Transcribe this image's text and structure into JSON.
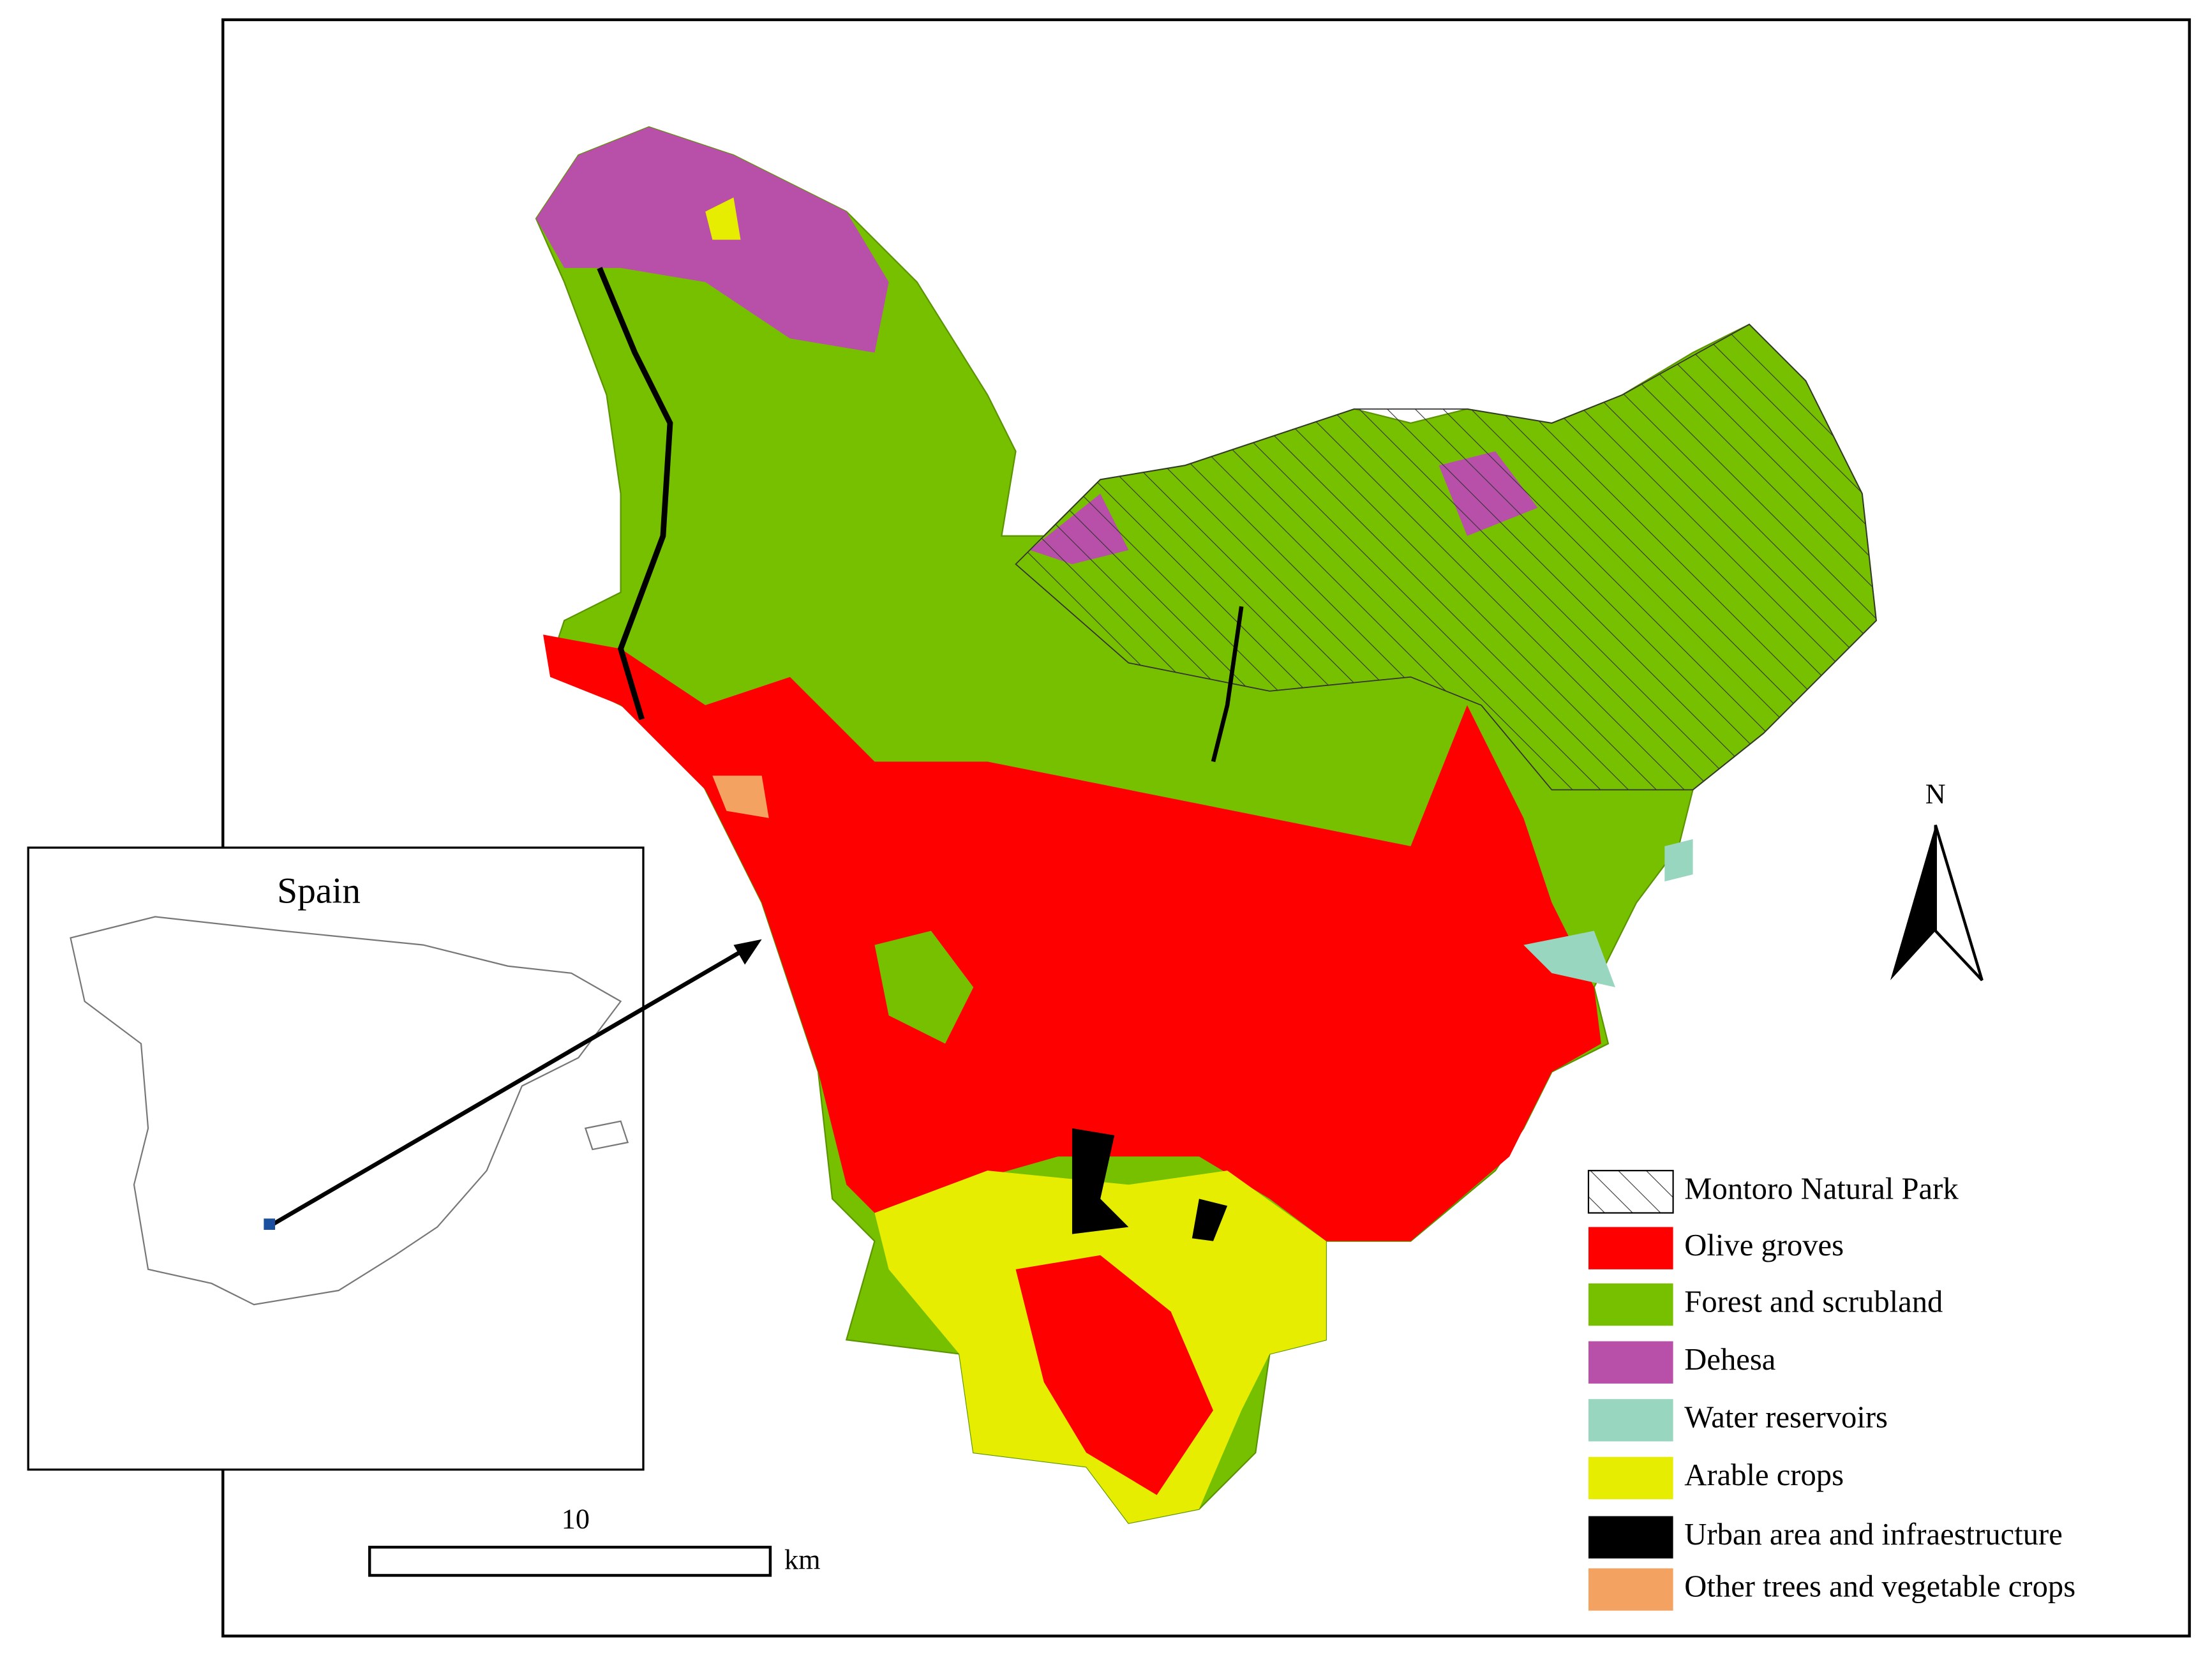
{
  "inset": {
    "title": "Spain"
  },
  "scale_bar": {
    "label": "10",
    "unit": "km"
  },
  "north_arrow": {
    "label": "N"
  },
  "legend": {
    "items": [
      {
        "label": "Montoro Natural Park"
      },
      {
        "label": "Olive groves",
        "color": "#ff0000"
      },
      {
        "label": "Forest and scrubland",
        "color": "#76c000"
      },
      {
        "label": "Dehesa",
        "color": "#b84fa8"
      },
      {
        "label": "Water reservoirs",
        "color": "#99d6c0"
      },
      {
        "label": "Arable crops",
        "color": "#e6ed00"
      },
      {
        "label": "Urban area and infraestructure",
        "color": "#000000"
      },
      {
        "label": "Other trees and vegetable crops",
        "color": "#f4a262"
      }
    ]
  }
}
